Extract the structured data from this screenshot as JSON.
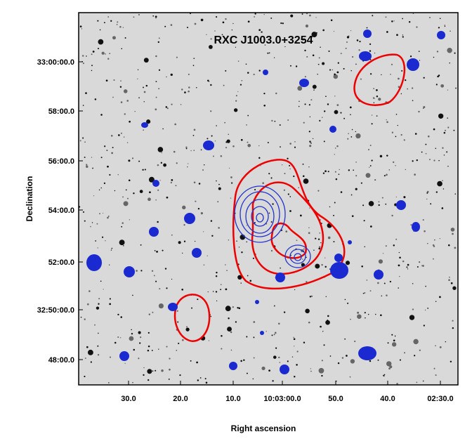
{
  "figure": {
    "title": "RXC J1003.0+3254",
    "x_label": "Right ascension",
    "y_label": "Declination",
    "x_tick_labels": [
      "30.0",
      "20.0",
      "10.0",
      "10:03:00.0",
      "50.0",
      "40.0",
      "02:30.0"
    ],
    "y_tick_labels": [
      "33:00:00.0",
      "58:00.0",
      "56:00.0",
      "54:00.0",
      "52:00.0",
      "32:50:00.0",
      "48:00.0"
    ]
  }
}
